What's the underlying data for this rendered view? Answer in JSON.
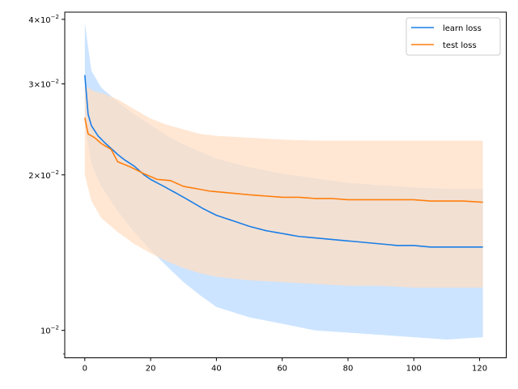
{
  "chart_data": {
    "type": "line",
    "title": "",
    "xlabel": "",
    "ylabel": "",
    "xlim": [
      -6.1,
      128.1
    ],
    "ylim": [
      0.00885,
      0.0413
    ],
    "yscale": "log",
    "grid": false,
    "legend_position": "top-right",
    "x_ticks": [
      0,
      20,
      40,
      60,
      80,
      100,
      120
    ],
    "x_tick_labels": [
      "0",
      "20",
      "40",
      "60",
      "80",
      "100",
      "120"
    ],
    "y_ticks": [
      0.01,
      0.02,
      0.03,
      0.04
    ],
    "y_tick_labels": [
      {
        "mantissa": "",
        "base": "10",
        "exp": "−2"
      },
      {
        "mantissa": "2×",
        "base": "10",
        "exp": "−2"
      },
      {
        "mantissa": "3×",
        "base": "10",
        "exp": "−2"
      },
      {
        "mantissa": "4×",
        "base": "10",
        "exp": "−2"
      }
    ],
    "y_minor_ticks": [
      0.009,
      0.05
    ],
    "series": [
      {
        "name": "learn loss",
        "color": "#1a7ee6",
        "band_color": "#cce4ff",
        "mean_points": [
          [
            0,
            0.0312
          ],
          [
            1,
            0.0262
          ],
          [
            2,
            0.0249
          ],
          [
            4,
            0.0238
          ],
          [
            6,
            0.0231
          ],
          [
            8,
            0.0225
          ],
          [
            10,
            0.0219
          ],
          [
            12,
            0.0214
          ],
          [
            15,
            0.0208
          ],
          [
            18,
            0.02
          ],
          [
            20,
            0.0196
          ],
          [
            24,
            0.019
          ],
          [
            28,
            0.0184
          ],
          [
            32,
            0.0178
          ],
          [
            36,
            0.0172
          ],
          [
            40,
            0.0167
          ],
          [
            45,
            0.0163
          ],
          [
            50,
            0.0159
          ],
          [
            55,
            0.0156
          ],
          [
            60,
            0.0154
          ],
          [
            65,
            0.0152
          ],
          [
            70,
            0.0151
          ],
          [
            75,
            0.015
          ],
          [
            80,
            0.0149
          ],
          [
            85,
            0.0148
          ],
          [
            90,
            0.0147
          ],
          [
            95,
            0.0146
          ],
          [
            100,
            0.0146
          ],
          [
            105,
            0.0145
          ],
          [
            110,
            0.0145
          ],
          [
            115,
            0.0145
          ],
          [
            121,
            0.0145
          ]
        ],
        "upper_points": [
          [
            0,
            0.0394
          ],
          [
            2,
            0.0318
          ],
          [
            5,
            0.0295
          ],
          [
            10,
            0.0277
          ],
          [
            15,
            0.0262
          ],
          [
            20,
            0.025
          ],
          [
            25,
            0.0238
          ],
          [
            30,
            0.0229
          ],
          [
            35,
            0.0222
          ],
          [
            40,
            0.0215
          ],
          [
            50,
            0.0207
          ],
          [
            60,
            0.0201
          ],
          [
            70,
            0.0197
          ],
          [
            80,
            0.0193
          ],
          [
            90,
            0.0191
          ],
          [
            100,
            0.0189
          ],
          [
            110,
            0.0188
          ],
          [
            121,
            0.0188
          ]
        ],
        "lower_points": [
          [
            0,
            0.025
          ],
          [
            2,
            0.021
          ],
          [
            5,
            0.019
          ],
          [
            10,
            0.017
          ],
          [
            15,
            0.0155
          ],
          [
            20,
            0.0143
          ],
          [
            25,
            0.0133
          ],
          [
            30,
            0.0124
          ],
          [
            35,
            0.0117
          ],
          [
            40,
            0.0111
          ],
          [
            50,
            0.0106
          ],
          [
            60,
            0.0103
          ],
          [
            70,
            0.01
          ],
          [
            80,
            0.0099
          ],
          [
            90,
            0.0098
          ],
          [
            100,
            0.0097
          ],
          [
            110,
            0.0096
          ],
          [
            121,
            0.0097
          ]
        ]
      },
      {
        "name": "test loss",
        "color": "#ff7f0e",
        "band_color": "#ffdfc4",
        "mean_points": [
          [
            0,
            0.0258
          ],
          [
            1,
            0.024
          ],
          [
            3,
            0.0236
          ],
          [
            5,
            0.023
          ],
          [
            8,
            0.0224
          ],
          [
            10,
            0.0212
          ],
          [
            14,
            0.0207
          ],
          [
            18,
            0.0201
          ],
          [
            22,
            0.0196
          ],
          [
            26,
            0.0195
          ],
          [
            30,
            0.019
          ],
          [
            34,
            0.0188
          ],
          [
            38,
            0.0186
          ],
          [
            42,
            0.0185
          ],
          [
            46,
            0.0184
          ],
          [
            50,
            0.0183
          ],
          [
            55,
            0.0182
          ],
          [
            60,
            0.0181
          ],
          [
            65,
            0.0181
          ],
          [
            70,
            0.018
          ],
          [
            75,
            0.018
          ],
          [
            80,
            0.0179
          ],
          [
            85,
            0.0179
          ],
          [
            90,
            0.0179
          ],
          [
            95,
            0.0179
          ],
          [
            100,
            0.0179
          ],
          [
            105,
            0.0178
          ],
          [
            110,
            0.0178
          ],
          [
            115,
            0.0178
          ],
          [
            121,
            0.0177
          ]
        ],
        "upper_points": [
          [
            0,
            0.0298
          ],
          [
            3,
            0.029
          ],
          [
            6,
            0.0287
          ],
          [
            10,
            0.028
          ],
          [
            15,
            0.0268
          ],
          [
            20,
            0.0257
          ],
          [
            25,
            0.025
          ],
          [
            30,
            0.0245
          ],
          [
            35,
            0.024
          ],
          [
            40,
            0.0238
          ],
          [
            50,
            0.0236
          ],
          [
            60,
            0.0234
          ],
          [
            70,
            0.0233
          ],
          [
            80,
            0.0233
          ],
          [
            90,
            0.0233
          ],
          [
            100,
            0.0233
          ],
          [
            110,
            0.0233
          ],
          [
            121,
            0.0233
          ]
        ],
        "lower_points": [
          [
            0,
            0.02
          ],
          [
            2,
            0.0178
          ],
          [
            5,
            0.0165
          ],
          [
            10,
            0.0155
          ],
          [
            15,
            0.0147
          ],
          [
            20,
            0.0141
          ],
          [
            25,
            0.0136
          ],
          [
            30,
            0.0132
          ],
          [
            35,
            0.0129
          ],
          [
            40,
            0.0127
          ],
          [
            50,
            0.0125
          ],
          [
            60,
            0.0124
          ],
          [
            70,
            0.0123
          ],
          [
            80,
            0.0122
          ],
          [
            90,
            0.0122
          ],
          [
            100,
            0.0121
          ],
          [
            110,
            0.0121
          ],
          [
            121,
            0.0121
          ]
        ]
      }
    ]
  }
}
